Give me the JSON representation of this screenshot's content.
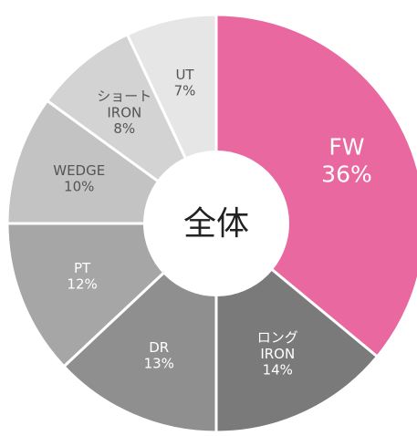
{
  "chart_data": {
    "type": "donut",
    "center_label": "全体",
    "categories": [
      "FW",
      "ロング\nIRON",
      "DR",
      "PT",
      "WEDGE",
      "ショート\nIRON",
      "UT"
    ],
    "values": [
      36,
      14,
      13,
      12,
      10,
      8,
      7
    ],
    "value_labels": [
      "36%",
      "14%",
      "13%",
      "12%",
      "10%",
      "8%",
      "7%"
    ],
    "colors": [
      "#e9689f",
      "#7a7a7a",
      "#8f8f8f",
      "#a6a6a6",
      "#c3c3c3",
      "#d3d3d3",
      "#e6e6e6"
    ]
  }
}
